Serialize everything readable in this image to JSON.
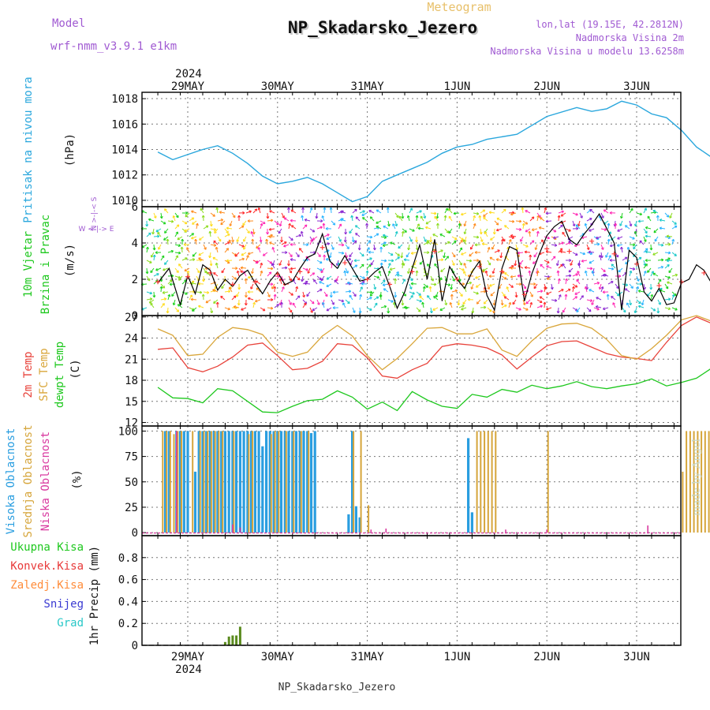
{
  "header": {
    "model_label": "Model",
    "model_name": "wrf-nmm_v3.9.1 e1km",
    "product": "Meteogram",
    "title": "NP_Skadarsko_Jezero",
    "lonlat": "lon,lat (19.15E, 42.2812N)",
    "altitude": "Nadmorska Visina 2m",
    "model_altitude": "Nadmorska Visina u modelu 13.6258m",
    "watermark": "made by Angel",
    "footer": "NP_Skadarsko_Jezero"
  },
  "colors": {
    "pressure": "#2aa7dd",
    "temp2m": "#e8423a",
    "sfc_temp": "#d9a63a",
    "dewpoint": "#1ec81e",
    "high_cloud": "#2a9ee0",
    "mid_cloud": "#d6a53a",
    "low_cloud": "#d93aa0",
    "total_precip": "#5a8a1e",
    "wind_speed": "#000000",
    "gust": "#ff3b3b",
    "header_purple": "#a05ad2"
  },
  "time_axis": {
    "year": "2024",
    "days": [
      "29MAY",
      "30MAY",
      "31MAY",
      "1JUN",
      "2JUN",
      "3JUN"
    ],
    "hours_before_first": 8,
    "hours_after_last": 16
  },
  "chart_data": [
    {
      "type": "line",
      "id": "pressure",
      "ylabel_lines": [
        "Pritisak na nivou mora"
      ],
      "unit": "(hPa)",
      "ylim": [
        1009.5,
        1018.5
      ],
      "yticks": [
        1010,
        1012,
        1014,
        1016,
        1018
      ],
      "series": [
        {
          "x_hours": [
            0,
            4,
            8,
            12,
            16,
            20,
            24,
            28,
            32,
            36,
            40,
            44,
            48,
            52,
            56,
            60,
            64,
            68,
            72,
            76,
            80,
            84,
            88,
            96,
            104,
            112,
            116,
            120,
            124,
            128,
            132,
            136,
            140,
            144,
            148,
            152,
            156,
            160,
            164,
            168,
            172,
            176,
            180
          ],
          "values": [
            1013.8,
            1013.2,
            1013.6,
            1014.0,
            1014.3,
            1013.7,
            1012.9,
            1011.9,
            1011.3,
            1011.5,
            1011.8,
            1011.3,
            1010.6,
            1009.9,
            1010.3,
            1011.5,
            1012.0,
            1012.5,
            1013.0,
            1013.7,
            1014.2,
            1014.4,
            1014.8,
            1015.2,
            1016.6,
            1017.3,
            1017.0,
            1017.2,
            1017.8,
            1017.5,
            1016.8,
            1016.5,
            1015.5,
            1014.2,
            1013.4,
            1013.7,
            1014.0,
            1013.7,
            1013.3,
            1013.4,
            1013.3,
            1012.8,
            1012.4
          ]
        }
      ]
    },
    {
      "type": "line",
      "id": "wind",
      "ylabel_lines": [
        "10m Vjetar",
        "Brzina i Pravac"
      ],
      "unit": "(m/s)",
      "compass": [
        "N",
        "W",
        "E",
        "S"
      ],
      "ylim": [
        0,
        6
      ],
      "yticks": [
        0,
        2,
        4,
        6
      ],
      "series": [
        {
          "name": "speed",
          "x_hours": [
            0,
            3,
            6,
            8,
            10,
            12,
            14,
            16,
            18,
            20,
            22,
            24,
            26,
            28,
            30,
            32,
            34,
            36,
            38,
            40,
            42,
            44,
            46,
            48,
            50,
            52,
            54,
            56,
            58,
            60,
            62,
            64,
            66,
            68,
            70,
            72,
            74,
            76,
            78,
            80,
            82,
            84,
            86,
            88,
            90,
            92,
            94,
            96,
            98,
            100,
            102,
            104,
            106,
            108,
            110,
            112,
            114,
            116,
            118,
            120,
            122,
            124,
            126,
            128,
            130,
            132,
            134,
            136,
            138,
            140,
            142,
            144,
            146,
            148,
            150,
            152,
            154,
            156,
            158,
            160,
            162,
            164,
            166,
            168,
            170,
            172,
            174,
            176,
            178,
            180
          ],
          "values": [
            1.8,
            2.6,
            0.6,
            2.2,
            1.2,
            2.8,
            2.5,
            1.4,
            2.0,
            1.6,
            2.2,
            2.5,
            1.8,
            1.2,
            1.9,
            2.4,
            1.7,
            1.9,
            2.6,
            3.2,
            3.4,
            4.5,
            3.0,
            2.6,
            3.3,
            2.6,
            1.9,
            2.0,
            2.4,
            2.7,
            1.6,
            0.4,
            1.3,
            2.6,
            3.9,
            2.0,
            4.2,
            0.8,
            2.7,
            2.0,
            1.5,
            2.4,
            3.0,
            1.1,
            0.3,
            2.6,
            3.8,
            3.6,
            0.8,
            2.3,
            3.4,
            4.4,
            4.9,
            5.2,
            4.2,
            3.9,
            4.5,
            5.0,
            5.6,
            4.8,
            4.0,
            0.3,
            3.6,
            3.2,
            1.3,
            0.8,
            1.5,
            0.6,
            0.7,
            1.8,
            2.0,
            2.8,
            2.5,
            1.8,
            2.0,
            2.2,
            1.3,
            0.9,
            1.5,
            1.0,
            2.4,
            1.3,
            2.2,
            0.7,
            2.0,
            2.5,
            1.8,
            0.8,
            1.6,
            1.9
          ]
        }
      ]
    },
    {
      "type": "line",
      "id": "temperature",
      "ylabel_lines": [
        "2m Temp",
        "SFC Temp",
        "dewpt Temp"
      ],
      "unit": "(C)",
      "ylim": [
        11.5,
        27.2
      ],
      "yticks": [
        12,
        15,
        18,
        21,
        24,
        27
      ],
      "series": [
        {
          "name": "2m Temp",
          "x_hours": [
            0,
            4,
            8,
            12,
            16,
            20,
            24,
            28,
            32,
            36,
            40,
            44,
            48,
            52,
            56,
            60,
            64,
            68,
            72,
            76,
            80,
            84,
            88,
            92,
            96,
            100,
            104,
            108,
            112,
            116,
            120,
            124,
            128,
            132,
            136,
            140,
            144,
            148,
            152,
            156,
            160,
            164,
            168,
            172,
            176,
            180
          ],
          "values": [
            22.4,
            22.6,
            19.8,
            19.2,
            20.0,
            21.3,
            23.0,
            23.3,
            21.5,
            19.5,
            19.7,
            20.7,
            23.2,
            23.0,
            21.2,
            18.6,
            18.3,
            19.5,
            20.4,
            22.8,
            23.2,
            23.0,
            22.6,
            21.6,
            19.6,
            21.3,
            22.9,
            23.5,
            23.6,
            22.7,
            21.8,
            21.3,
            21.1,
            20.8,
            23.4,
            25.8,
            27.0,
            26.1,
            23.6,
            21.4,
            21.6,
            22.5,
            23.6,
            24.8,
            26.0,
            26.2
          ]
        },
        {
          "name": "SFC Temp",
          "x_hours": [
            0,
            4,
            8,
            12,
            16,
            20,
            24,
            28,
            32,
            36,
            40,
            44,
            48,
            52,
            56,
            60,
            64,
            68,
            72,
            76,
            80,
            84,
            88,
            92,
            96,
            100,
            104,
            108,
            112,
            116,
            120,
            124,
            128,
            132,
            136,
            140,
            144,
            148,
            152,
            156,
            160,
            164,
            168,
            172,
            176,
            180
          ],
          "values": [
            25.3,
            24.4,
            21.5,
            21.7,
            24.1,
            25.5,
            25.2,
            24.5,
            22.0,
            21.4,
            22.0,
            24.3,
            25.8,
            24.3,
            21.5,
            19.5,
            21.1,
            23.2,
            25.4,
            25.5,
            24.6,
            24.6,
            25.3,
            22.3,
            21.4,
            23.6,
            25.4,
            26.0,
            26.1,
            25.4,
            23.8,
            21.5,
            21.0,
            22.5,
            24.4,
            26.6,
            27.2,
            26.4,
            24.1,
            21.5,
            21.2,
            23.5,
            25.2,
            26.0,
            26.3,
            26.5
          ]
        },
        {
          "name": "dewpt Temp",
          "x_hours": [
            0,
            4,
            8,
            12,
            16,
            20,
            24,
            28,
            32,
            36,
            40,
            44,
            48,
            52,
            56,
            60,
            64,
            68,
            72,
            76,
            80,
            84,
            88,
            92,
            96,
            100,
            104,
            108,
            112,
            116,
            120,
            124,
            128,
            132,
            136,
            140,
            144,
            148,
            152,
            156,
            160,
            162,
            164,
            166,
            168,
            172,
            176,
            180
          ],
          "values": [
            17.0,
            15.5,
            15.4,
            14.8,
            16.8,
            16.5,
            15.0,
            13.5,
            13.4,
            14.3,
            15.1,
            15.3,
            16.5,
            15.6,
            13.9,
            14.9,
            13.7,
            16.4,
            15.2,
            14.3,
            14.0,
            16.0,
            15.6,
            16.7,
            16.3,
            17.3,
            16.8,
            17.2,
            17.8,
            17.1,
            16.8,
            17.2,
            17.5,
            18.2,
            17.2,
            17.7,
            18.3,
            19.7,
            13.2,
            17.6,
            19.0,
            17.2,
            17.8,
            15.0,
            16.6,
            17.3,
            16.8,
            18.0
          ]
        }
      ]
    },
    {
      "type": "bar",
      "id": "clouds",
      "ylabel_lines": [
        "Visoka Oblacnost",
        "Srednja Oblacnost",
        "Niska Oblacnost"
      ],
      "unit": "(%)",
      "ylim": [
        -3,
        105
      ],
      "yticks": [
        0,
        25,
        50,
        75,
        100
      ],
      "series": [
        {
          "name": "Visoka Oblacnost",
          "x_hours": [
            2,
            3,
            5,
            6,
            7,
            8,
            10,
            11,
            12,
            13,
            14,
            15,
            16,
            17,
            18,
            19,
            20,
            21,
            22,
            23,
            24,
            25,
            26,
            27,
            28,
            29,
            30,
            31,
            32,
            33,
            34,
            35,
            36,
            37,
            38,
            39,
            40,
            41,
            42,
            51,
            52,
            53,
            54,
            83,
            84
          ],
          "values": [
            100,
            100,
            100,
            100,
            100,
            100,
            60,
            100,
            100,
            100,
            100,
            100,
            100,
            100,
            100,
            100,
            100,
            100,
            100,
            100,
            100,
            100,
            100,
            100,
            85,
            100,
            100,
            100,
            100,
            100,
            100,
            100,
            100,
            100,
            100,
            100,
            100,
            98,
            100,
            18,
            100,
            26,
            15,
            93,
            20
          ]
        },
        {
          "name": "Srednja Oblacnost",
          "x_hours": [
            1,
            2,
            3,
            4,
            5,
            6,
            9,
            11,
            12,
            13,
            14,
            15,
            16,
            17,
            20,
            24,
            25,
            30,
            31,
            32,
            34,
            36,
            38,
            40,
            52,
            54,
            56,
            85,
            86,
            87,
            88,
            89,
            90,
            104,
            140,
            141,
            142,
            143,
            144,
            145,
            146,
            147,
            148,
            149,
            150
          ],
          "values": [
            100,
            100,
            100,
            97,
            100,
            100,
            100,
            100,
            100,
            100,
            100,
            100,
            100,
            100,
            100,
            97,
            100,
            97,
            100,
            100,
            100,
            100,
            100,
            100,
            100,
            100,
            27,
            100,
            100,
            100,
            100,
            100,
            100,
            100,
            60,
            100,
            100,
            100,
            100,
            100,
            100,
            100,
            100,
            100,
            100
          ]
        },
        {
          "name": "Niska Oblacnost",
          "x_hours": [
            5,
            20,
            22,
            57,
            61,
            93,
            104,
            131,
            162
          ],
          "values": [
            100,
            8,
            5,
            3,
            4,
            3,
            3,
            7,
            3
          ]
        }
      ]
    },
    {
      "type": "bar",
      "id": "precip",
      "ylabel_lines": [
        "Ukupna Kisa",
        "Konvek.Kisa",
        "Zaledj.Kisa",
        "Snijeg",
        "Grad"
      ],
      "unit": "1hr Precip (mm)",
      "ylim": [
        0,
        1.0
      ],
      "yticks": [
        0,
        0.2,
        0.4,
        0.6,
        0.8
      ],
      "series": [
        {
          "name": "Ukupna Kisa",
          "x_hours": [
            18,
            19,
            20,
            21,
            22
          ],
          "values": [
            0.03,
            0.08,
            0.09,
            0.09,
            0.17
          ]
        },
        {
          "name": "Konvek.Kisa",
          "x_hours": [],
          "values": []
        },
        {
          "name": "Zaledj.Kisa",
          "x_hours": [],
          "values": []
        },
        {
          "name": "Snijeg",
          "x_hours": [],
          "values": []
        },
        {
          "name": "Grad",
          "x_hours": [],
          "values": []
        }
      ]
    }
  ]
}
